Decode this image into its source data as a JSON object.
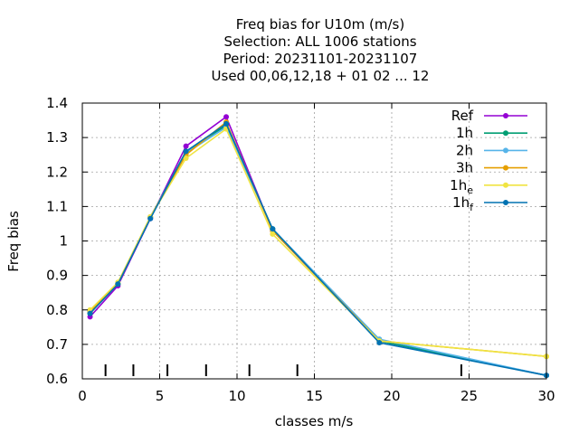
{
  "chart_data": {
    "type": "line",
    "title_lines": [
      "Freq bias  for U10m (m/s)",
      "Selection: ALL   1006 stations",
      "Period: 20231101-20231107",
      "Used  00,06,12,18 + 01 02 ... 12"
    ],
    "xlabel": "classes m/s",
    "ylabel": "Freq bias",
    "xlim": [
      0,
      30
    ],
    "ylim": [
      0.6,
      1.4
    ],
    "xticks": [
      0,
      5,
      10,
      15,
      20,
      25,
      30
    ],
    "yticks": [
      0.6,
      0.7,
      0.8,
      0.9,
      1.0,
      1.1,
      1.2,
      1.3,
      1.4
    ],
    "ytick_labels": [
      "0.6",
      "0.7",
      "0.8",
      "0.9",
      "1",
      "1.1",
      "1.2",
      "1.3",
      "1.4"
    ],
    "grid": true,
    "legend_position": "top-right",
    "class_limit_marks": [
      1.5,
      3.3,
      5.5,
      8.0,
      10.8,
      13.9,
      24.5
    ],
    "x": [
      0.5,
      2.3,
      4.4,
      6.7,
      9.3,
      12.3,
      19.2,
      30.0
    ],
    "series": [
      {
        "name": "Ref",
        "name_sub": "",
        "color": "#9400d3",
        "values": [
          0.78,
          0.87,
          1.065,
          1.275,
          1.36,
          1.03,
          0.71,
          0.61
        ]
      },
      {
        "name": "1h",
        "name_sub": "",
        "color": "#009e73",
        "values": [
          0.79,
          0.875,
          1.068,
          1.26,
          1.335,
          1.035,
          0.71,
          0.61
        ]
      },
      {
        "name": "2h",
        "name_sub": "",
        "color": "#56b4e9",
        "values": [
          0.795,
          0.875,
          1.07,
          1.255,
          1.33,
          1.035,
          0.715,
          0.61
        ]
      },
      {
        "name": "3h",
        "name_sub": "",
        "color": "#e69f00",
        "values": [
          0.795,
          0.875,
          1.07,
          1.25,
          1.345,
          1.03,
          0.71,
          0.665
        ]
      },
      {
        "name": "1h",
        "name_sub": "e",
        "color": "#f0e442",
        "values": [
          0.8,
          0.88,
          1.07,
          1.24,
          1.325,
          1.02,
          0.71,
          0.665
        ]
      },
      {
        "name": "1h",
        "name_sub": "f",
        "color": "#0072b2",
        "values": [
          0.79,
          0.875,
          1.065,
          1.26,
          1.34,
          1.035,
          0.705,
          0.61
        ]
      }
    ]
  }
}
